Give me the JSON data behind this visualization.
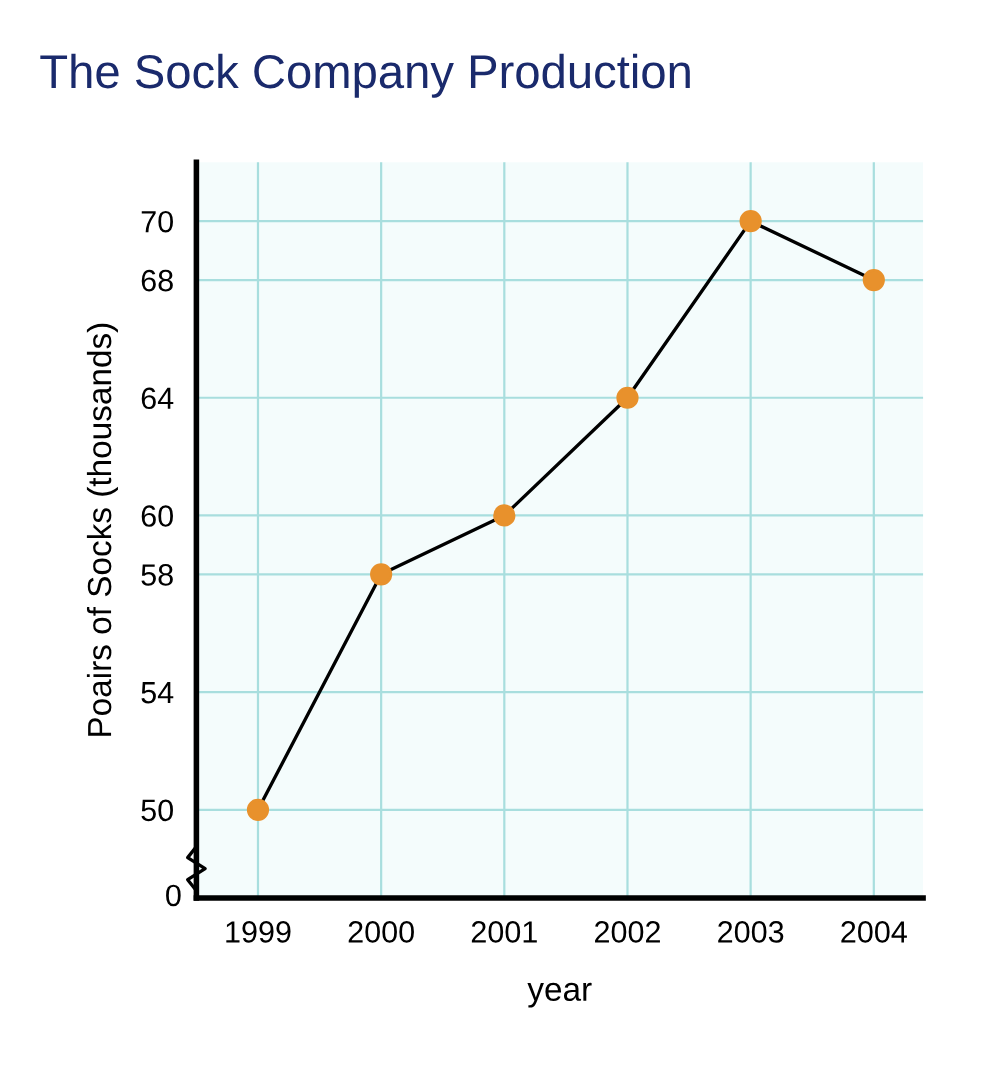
{
  "chart_data": {
    "type": "line",
    "title": "The Sock Company Production",
    "xlabel": "year",
    "ylabel": "Poairs of Socks (thousands)",
    "categories": [
      "1999",
      "2000",
      "2001",
      "2002",
      "2003",
      "2004"
    ],
    "series": [
      {
        "color": "#e8912c",
        "values": [
          50,
          58,
          60,
          64,
          70,
          68
        ]
      }
    ],
    "ylim": [
      47,
      72
    ],
    "yticks": [
      50,
      54,
      58,
      60,
      64,
      68,
      70
    ],
    "annotations": [
      "0"
    ],
    "grid": true,
    "marker": "circle",
    "line_style": "solid"
  }
}
